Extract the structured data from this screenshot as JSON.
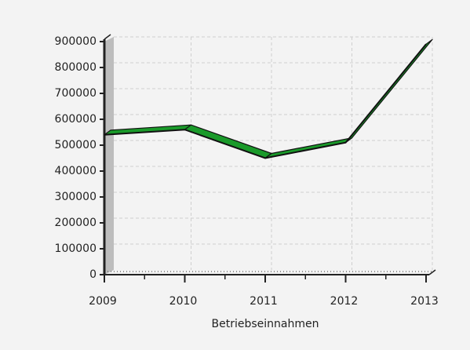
{
  "chart_data": {
    "type": "line",
    "x_label": "Betriebseinnahmen",
    "categories": [
      "2009",
      "2010",
      "2011",
      "2012",
      "2013"
    ],
    "series": [
      {
        "name": "Betriebseinnahmen",
        "color": "#1a9a2a",
        "values": [
          540000,
          560000,
          450000,
          510000,
          890000
        ]
      }
    ],
    "ylim": [
      0,
      900000
    ],
    "yticks": [
      0,
      100000,
      200000,
      300000,
      400000,
      500000,
      600000,
      700000,
      800000,
      900000
    ],
    "grid": true
  }
}
